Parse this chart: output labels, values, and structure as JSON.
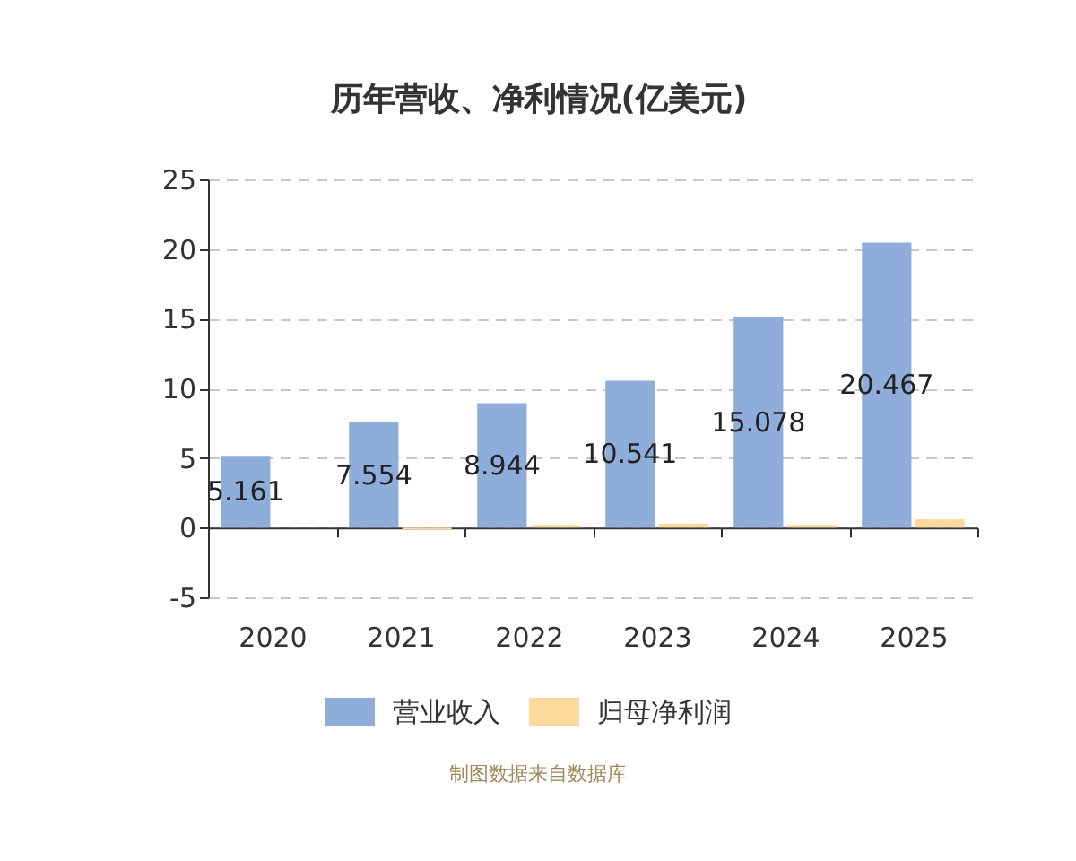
{
  "chart_data": {
    "type": "bar",
    "title": "历年营收、净利情况(亿美元)",
    "categories": [
      "2020",
      "2021",
      "2022",
      "2023",
      "2024",
      "2025"
    ],
    "series": [
      {
        "name": "营业收入",
        "color": "#8eaddb",
        "values": [
          5.161,
          7.554,
          8.944,
          10.541,
          15.078,
          20.467
        ],
        "value_labels": [
          "5.161",
          "7.554",
          "8.944",
          "10.541",
          "15.078",
          "20.467"
        ]
      },
      {
        "name": "归母净利润",
        "color": "#fdd99b",
        "values": [
          0,
          -0.1,
          0.2,
          0.3,
          0.2,
          0.6
        ]
      }
    ],
    "ylim": [
      -5,
      25
    ],
    "yticks": [
      -5,
      0,
      5,
      10,
      15,
      20,
      25
    ],
    "grid": "y",
    "legend": "bottom",
    "annotations": [
      "制图数据来自数据库"
    ]
  }
}
